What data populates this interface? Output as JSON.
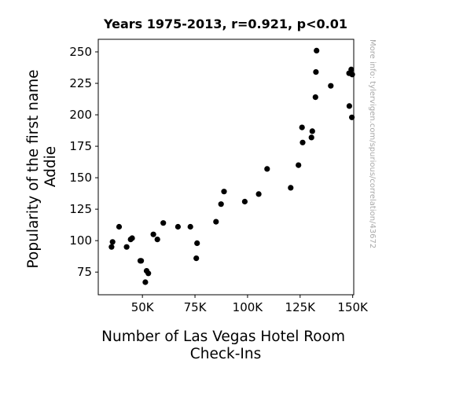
{
  "chart_data": {
    "type": "scatter",
    "title": "Years 1975-2013, r=0.921, p<0.01",
    "xlabel_lines": [
      "Number of Las Vegas Hotel Room",
      "Check-Ins"
    ],
    "ylabel_lines": [
      "Popularity of the first name",
      "Addie"
    ],
    "xlim": [
      29000,
      150500
    ],
    "ylim": [
      57,
      260
    ],
    "xticks": [
      {
        "value": 50000,
        "label": "50K"
      },
      {
        "value": 75000,
        "label": "75K"
      },
      {
        "value": 100000,
        "label": "100K"
      },
      {
        "value": 125000,
        "label": "125K"
      },
      {
        "value": 150000,
        "label": "150K"
      }
    ],
    "yticks": [
      {
        "value": 75,
        "label": "75"
      },
      {
        "value": 100,
        "label": "100"
      },
      {
        "value": 125,
        "label": "125"
      },
      {
        "value": 150,
        "label": "150"
      },
      {
        "value": 175,
        "label": "175"
      },
      {
        "value": 200,
        "label": "200"
      },
      {
        "value": 225,
        "label": "225"
      },
      {
        "value": 250,
        "label": "250"
      }
    ],
    "grid": false,
    "marker_color": "#000000",
    "points": [
      {
        "x": 35300,
        "y": 95
      },
      {
        "x": 35800,
        "y": 99
      },
      {
        "x": 38900,
        "y": 111
      },
      {
        "x": 42500,
        "y": 95
      },
      {
        "x": 44400,
        "y": 101
      },
      {
        "x": 45100,
        "y": 102
      },
      {
        "x": 49000,
        "y": 84
      },
      {
        "x": 49400,
        "y": 84
      },
      {
        "x": 51400,
        "y": 67
      },
      {
        "x": 52000,
        "y": 76
      },
      {
        "x": 52800,
        "y": 74
      },
      {
        "x": 55200,
        "y": 105
      },
      {
        "x": 57100,
        "y": 101
      },
      {
        "x": 59900,
        "y": 114
      },
      {
        "x": 66900,
        "y": 111
      },
      {
        "x": 72800,
        "y": 111
      },
      {
        "x": 75600,
        "y": 86
      },
      {
        "x": 76000,
        "y": 98
      },
      {
        "x": 85000,
        "y": 115
      },
      {
        "x": 87400,
        "y": 129
      },
      {
        "x": 88800,
        "y": 139
      },
      {
        "x": 98700,
        "y": 131
      },
      {
        "x": 105300,
        "y": 137
      },
      {
        "x": 109300,
        "y": 157
      },
      {
        "x": 120500,
        "y": 142
      },
      {
        "x": 124200,
        "y": 160
      },
      {
        "x": 125900,
        "y": 190
      },
      {
        "x": 126200,
        "y": 178
      },
      {
        "x": 130400,
        "y": 182
      },
      {
        "x": 130800,
        "y": 187
      },
      {
        "x": 132300,
        "y": 214
      },
      {
        "x": 132500,
        "y": 234
      },
      {
        "x": 132800,
        "y": 251
      },
      {
        "x": 139600,
        "y": 223
      },
      {
        "x": 148300,
        "y": 233
      },
      {
        "x": 148400,
        "y": 207
      },
      {
        "x": 149300,
        "y": 236
      },
      {
        "x": 149600,
        "y": 198
      },
      {
        "x": 149800,
        "y": 232
      }
    ]
  },
  "watermark": "More info: tylervigen.com/spurious/correlation/43672"
}
